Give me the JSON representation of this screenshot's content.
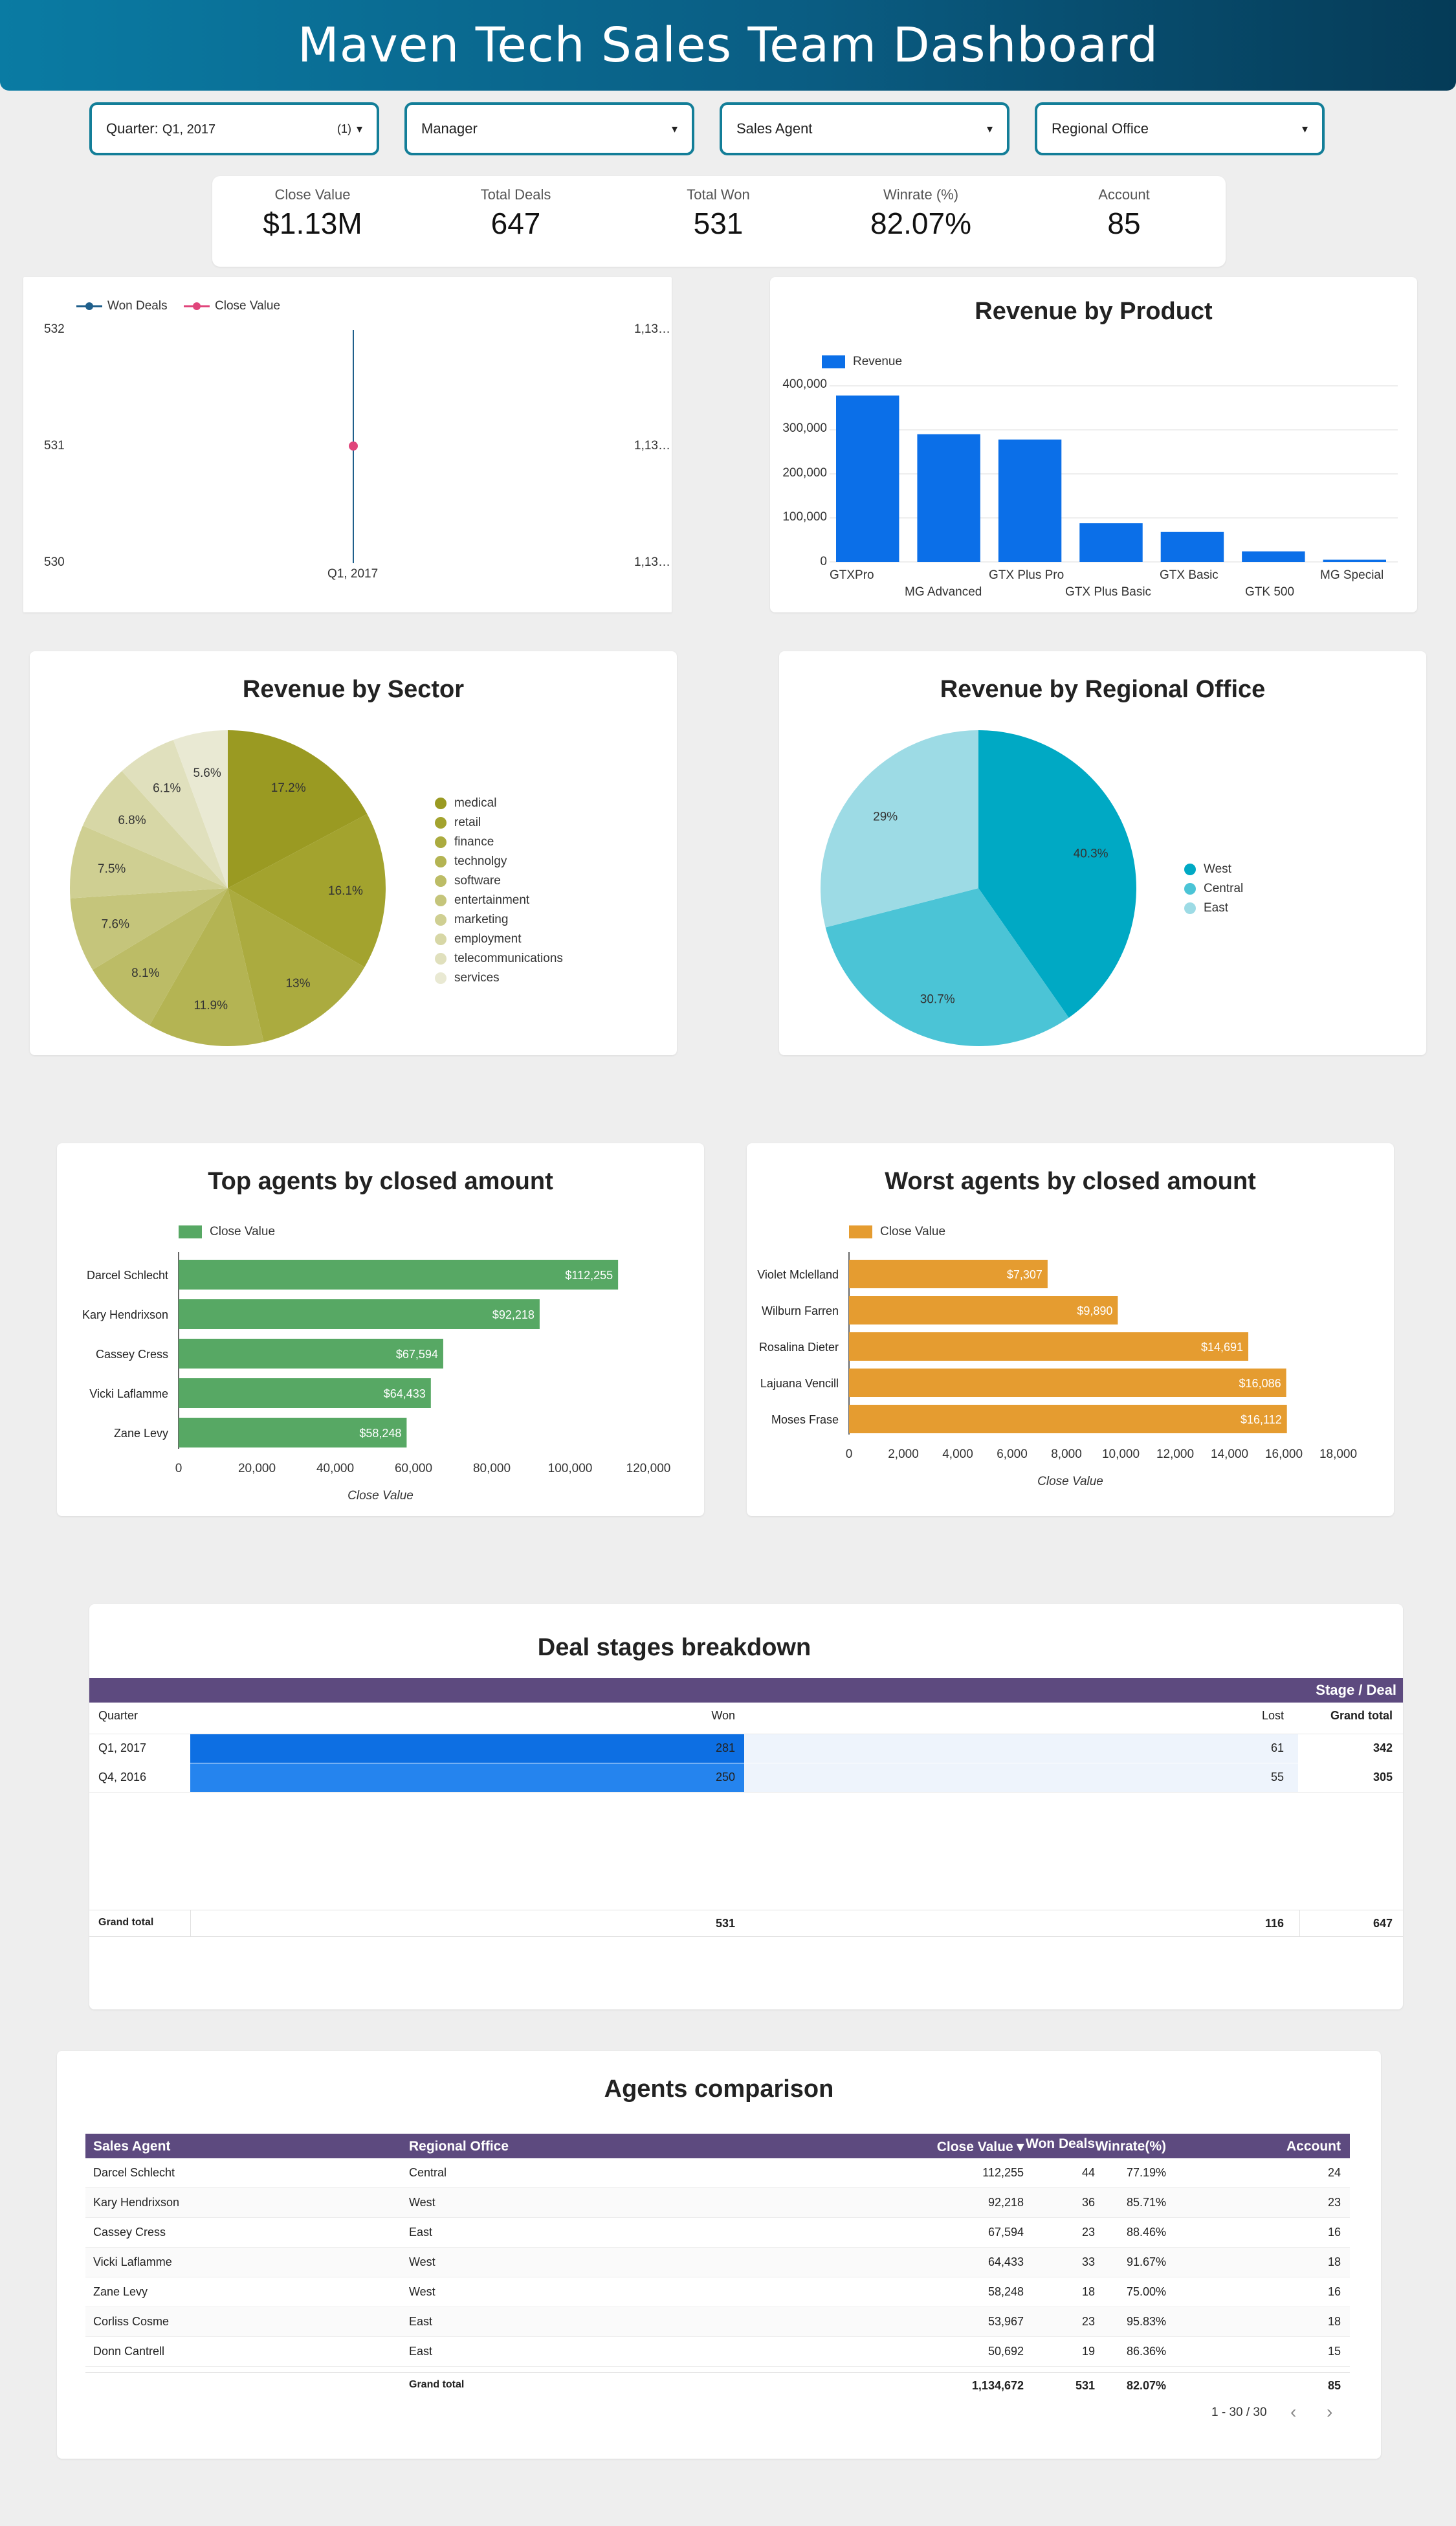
{
  "title": "Maven Tech Sales Team Dashboard",
  "filters": [
    {
      "label": "Quarter:",
      "value": "Q1, 2017",
      "count": "(1)"
    },
    {
      "label": "Manager",
      "value": "",
      "count": ""
    },
    {
      "label": "Sales Agent",
      "value": "",
      "count": ""
    },
    {
      "label": "Regional Office",
      "value": "",
      "count": ""
    }
  ],
  "kpis": [
    {
      "title": "Close Value",
      "value": "$1.13M"
    },
    {
      "title": "Total Deals",
      "value": "647"
    },
    {
      "title": "Total Won",
      "value": "531"
    },
    {
      "title": "Winrate (%)",
      "value": "82.07%"
    },
    {
      "title": "Account",
      "value": "85"
    }
  ],
  "combo": {
    "legend": [
      "Won Deals",
      "Close Value"
    ],
    "left_ticks": [
      "532",
      "531",
      "530"
    ],
    "right_ticks": [
      "1,13…",
      "1,13…",
      "1,13…"
    ],
    "x_label": "Q1, 2017",
    "colors": {
      "won": "#1f5f8b",
      "close": "#e0457b"
    }
  },
  "revenue_product": {
    "title": "Revenue by Product",
    "legend": "Revenue",
    "y_ticks": [
      "400,000",
      "300,000",
      "200,000",
      "100,000",
      "0"
    ],
    "categories": [
      "GTXPro",
      "MG Advanced",
      "GTX Plus Pro",
      "GTX Plus Basic",
      "GTX Basic",
      "GTK 500",
      "MG Special"
    ],
    "values": [
      378000,
      290000,
      278000,
      88000,
      68000,
      24000,
      5000
    ],
    "ymax": 400000,
    "color": "#0b6fe8"
  },
  "revenue_sector": {
    "title": "Revenue by Sector",
    "labels": [
      "medical",
      "retail",
      "finance",
      "technolgy",
      "software",
      "entertainment",
      "marketing",
      "employment",
      "telecommunications",
      "services"
    ],
    "values": [
      17.2,
      16.1,
      13,
      11.9,
      8.1,
      7.6,
      7.5,
      6.8,
      6.1,
      5.6
    ],
    "pct_labels": [
      "17.2%",
      "16.1%",
      "13%",
      "11.9%",
      "8.1%",
      "7.6%",
      "7.5%",
      "6.8%",
      "6.1%",
      "5.6%"
    ],
    "colors": [
      "#9a9a22",
      "#a3a32e",
      "#abab3f",
      "#b4b453",
      "#bcbc66",
      "#c5c57b",
      "#cfcf92",
      "#d7d7a6",
      "#e0e0bd",
      "#e9e9d3"
    ]
  },
  "revenue_region": {
    "title": "Revenue by Regional Office",
    "labels": [
      "West",
      "Central",
      "East"
    ],
    "values": [
      40.3,
      30.7,
      29
    ],
    "pct_labels": [
      "40.3%",
      "30.7%",
      "29%"
    ],
    "colors": [
      "#00a9c4",
      "#4bc4d6",
      "#9ddbe5"
    ]
  },
  "top_agents": {
    "title": "Top agents by closed amount",
    "legend": "Close Value",
    "names": [
      "Darcel Schlecht",
      "Kary Hendrixson",
      "Cassey Cress",
      "Vicki Laflamme",
      "Zane Levy"
    ],
    "values": [
      112255,
      92218,
      67594,
      64433,
      58248
    ],
    "value_labels": [
      "$112,255",
      "$92,218",
      "$67,594",
      "$64,433",
      "$58,248"
    ],
    "x_ticks": [
      "0",
      "20,000",
      "40,000",
      "60,000",
      "80,000",
      "100,000",
      "120,000"
    ],
    "xmax": 120000,
    "axis_label": "Close Value",
    "color": "#57a864"
  },
  "worst_agents": {
    "title": "Worst agents by closed amount",
    "legend": "Close Value",
    "names": [
      "Violet Mclelland",
      "Wilburn Farren",
      "Rosalina Dieter",
      "Lajuana Vencill",
      "Moses Frase"
    ],
    "values": [
      7307,
      9890,
      14691,
      16086,
      16112
    ],
    "value_labels": [
      "$7,307",
      "$9,890",
      "$14,691",
      "$16,086",
      "$16,112"
    ],
    "x_ticks": [
      "0",
      "2,000",
      "4,000",
      "6,000",
      "8,000",
      "10,000",
      "12,000",
      "14,000",
      "16,000",
      "18,000"
    ],
    "xmax": 18000,
    "axis_label": "Close Value",
    "color": "#e59c30"
  },
  "deal_stages": {
    "title": "Deal stages breakdown",
    "header_right": "Stage / Deal",
    "columns": [
      "Quarter",
      "Won",
      "Lost",
      "Grand total"
    ],
    "rows": [
      {
        "quarter": "Q1, 2017",
        "won": "281",
        "lost": "61",
        "total": "342",
        "won_n": 281
      },
      {
        "quarter": "Q4, 2016",
        "won": "250",
        "lost": "55",
        "total": "305",
        "won_n": 250
      }
    ],
    "grand": {
      "label": "Grand total",
      "won": "531",
      "lost": "116",
      "total": "647"
    },
    "colors": {
      "header": "#5d4a7f",
      "won1": "#0d6fe3",
      "won2": "#2584ee",
      "lost_bg": "#eef4fc"
    }
  },
  "agents_comparison": {
    "title": "Agents comparison",
    "columns": [
      "Sales Agent",
      "Regional Office",
      "Close Value ▾",
      "Won Deals",
      "Winrate(%)",
      "Account"
    ],
    "rows": [
      [
        "Darcel Schlecht",
        "Central",
        "112,255",
        "44",
        "77.19%",
        "24"
      ],
      [
        "Kary Hendrixson",
        "West",
        "92,218",
        "36",
        "85.71%",
        "23"
      ],
      [
        "Cassey Cress",
        "East",
        "67,594",
        "23",
        "88.46%",
        "16"
      ],
      [
        "Vicki Laflamme",
        "West",
        "64,433",
        "33",
        "91.67%",
        "18"
      ],
      [
        "Zane Levy",
        "West",
        "58,248",
        "18",
        "75.00%",
        "16"
      ],
      [
        "Corliss Cosme",
        "East",
        "53,967",
        "23",
        "95.83%",
        "18"
      ],
      [
        "Donn Cantrell",
        "East",
        "50,692",
        "19",
        "86.36%",
        "15"
      ]
    ],
    "grand": [
      "Grand total",
      "1,134,672",
      "531",
      "82.07%",
      "85"
    ],
    "pagination": "1 - 30 / 30"
  }
}
